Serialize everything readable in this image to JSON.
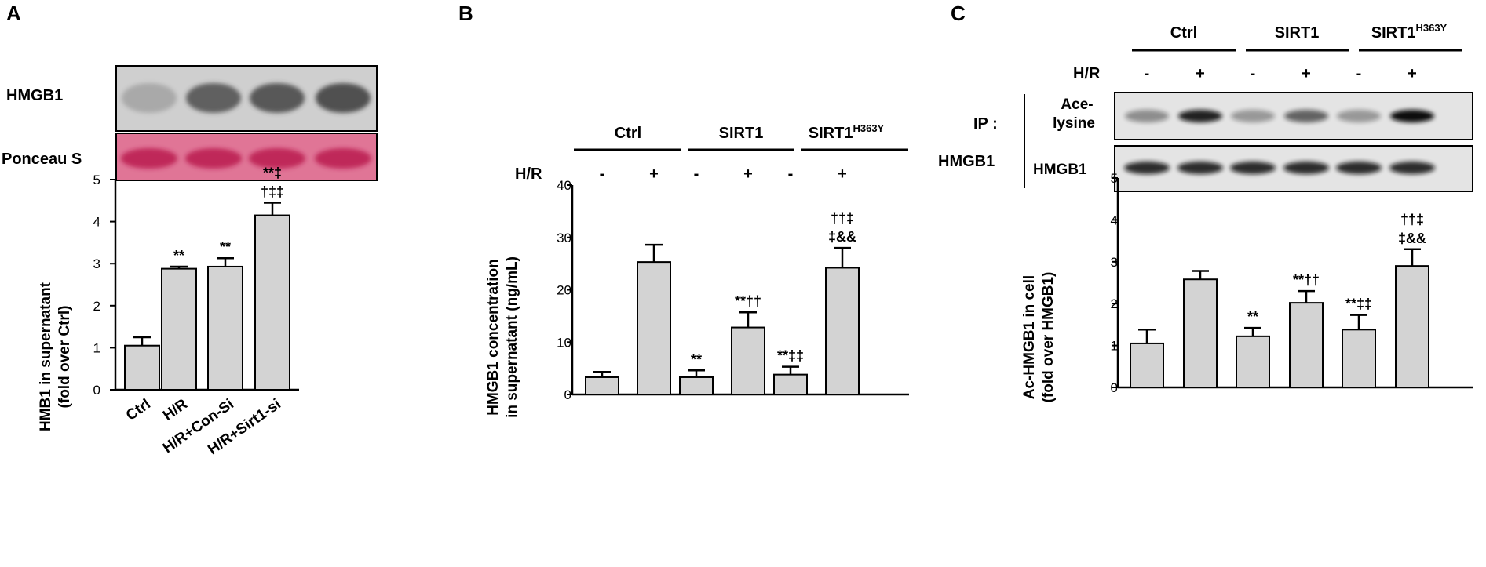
{
  "colors": {
    "bar_fill": "#d3d3d3",
    "stroke": "#000000",
    "ponceau": "#d8557a",
    "blot_bg": "#c8c8c8"
  },
  "panels": {
    "A": {
      "letter": "A",
      "blot": {
        "row1_label": "HMGB1",
        "row2_label": "Ponceau S"
      },
      "bands_row1": [
        0.25,
        0.75,
        0.8,
        0.85
      ],
      "bands_row2": [
        0.8,
        0.8,
        0.8,
        0.8
      ]
    },
    "B": {
      "letter": "B",
      "groups": [
        {
          "label": "Ctrl",
          "sup": ""
        },
        {
          "label": "SIRT1",
          "sup": ""
        },
        {
          "label": "SIRT1",
          "sup": "H363Y"
        }
      ],
      "hr_label": "H/R",
      "signs": [
        "-",
        "+",
        "-",
        "+",
        "-",
        "+"
      ]
    },
    "C": {
      "letter": "C",
      "groups": [
        {
          "label": "Ctrl",
          "sup": ""
        },
        {
          "label": "SIRT1",
          "sup": ""
        },
        {
          "label": "SIRT1",
          "sup": "H363Y"
        }
      ],
      "hr_label": "H/R",
      "signs": [
        "-",
        "+",
        "-",
        "+",
        "-",
        "+"
      ],
      "blot": {
        "ip_label": "IP :",
        "ip_sub": "HMGB1",
        "row1_label_a": "Ace-",
        "row1_label_b": "lysine",
        "row2_label": "HMGB1"
      },
      "bands_row1": [
        0.4,
        0.9,
        0.35,
        0.6,
        0.35,
        1.0
      ],
      "bands_row2": [
        0.85,
        0.85,
        0.85,
        0.85,
        0.85,
        0.85
      ]
    }
  },
  "chart_data": [
    {
      "type": "bar",
      "panel": "A",
      "categories": [
        "Ctrl",
        "H/R",
        "H/R+Con-Si",
        "H/R+Sirt1-si"
      ],
      "values": [
        1.05,
        2.88,
        2.93,
        4.15
      ],
      "errors": [
        0.2,
        0.05,
        0.2,
        0.3
      ],
      "annotations": [
        [],
        [
          "**"
        ],
        [
          "**"
        ],
        [
          "**‡",
          "†‡‡"
        ]
      ],
      "ylabel_lines": [
        "HMB1 in supernatant",
        "(fold over Ctrl)"
      ],
      "ylim": [
        0,
        5
      ],
      "yticks": [
        0,
        1,
        2,
        3,
        4,
        5
      ]
    },
    {
      "type": "bar",
      "panel": "B",
      "categories": [
        "-",
        "+",
        "-",
        "+",
        "-",
        "+"
      ],
      "values": [
        3.3,
        25.3,
        3.3,
        12.8,
        3.8,
        24.2
      ],
      "errors": [
        1.0,
        3.3,
        1.3,
        2.9,
        1.5,
        3.8
      ],
      "annotations": [
        [],
        [],
        [
          "**"
        ],
        [
          "**††"
        ],
        [
          "**‡‡"
        ],
        [
          "††‡",
          "‡&&"
        ]
      ],
      "ylabel_lines": [
        "HMGB1 concentration",
        "in supernatant (ng/mL)"
      ],
      "ylim": [
        0,
        40
      ],
      "yticks": [
        0,
        10,
        20,
        30,
        40
      ]
    },
    {
      "type": "bar",
      "panel": "C",
      "categories": [
        "-",
        "+",
        "-",
        "+",
        "-",
        "+"
      ],
      "values": [
        1.05,
        2.58,
        1.22,
        2.02,
        1.38,
        2.9
      ],
      "errors": [
        0.33,
        0.2,
        0.2,
        0.28,
        0.35,
        0.4
      ],
      "annotations": [
        [],
        [],
        [
          "**"
        ],
        [
          "**††"
        ],
        [
          "**‡‡"
        ],
        [
          "††‡",
          "‡&&"
        ]
      ],
      "ylabel_lines": [
        "Ac-HMGB1 in cell",
        "(fold over HMGB1)"
      ],
      "ylim": [
        0,
        5
      ],
      "yticks": [
        0,
        1,
        2,
        3,
        4,
        5
      ]
    }
  ]
}
